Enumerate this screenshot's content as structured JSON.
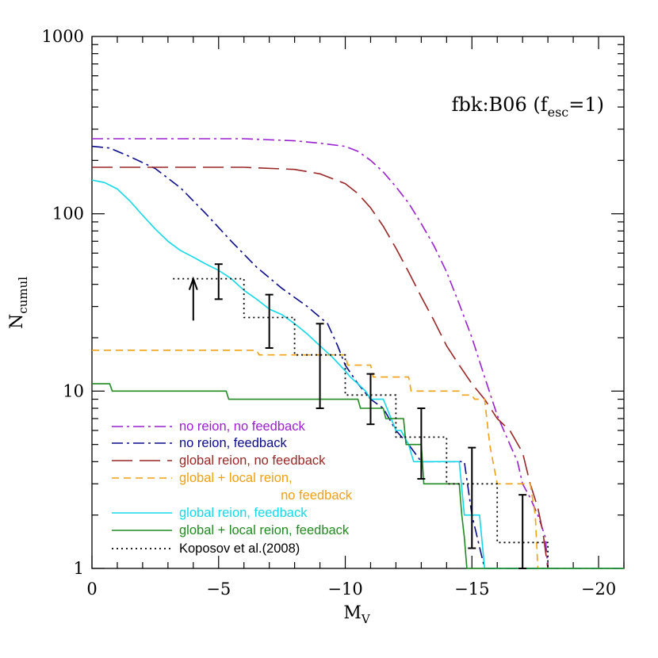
{
  "chart_data": {
    "type": "line",
    "xlabel": "M",
    "xlabel_sub": "V",
    "ylabel": "N",
    "ylabel_sub": "cumul",
    "yscale": "log",
    "xlim": [
      0,
      -21
    ],
    "ylim": [
      1,
      1000
    ],
    "x_ticks": [
      0,
      -5,
      -10,
      -15,
      -20
    ],
    "x_tick_labels": [
      "0",
      "−5",
      "−10",
      "−15",
      "−20"
    ],
    "y_ticks": [
      1,
      10,
      100,
      1000
    ],
    "y_tick_labels": [
      "1",
      "10",
      "100",
      "1000"
    ],
    "annotation": {
      "prefix": "fbk:B06  (f",
      "sub": "esc",
      "suffix": "=1)"
    },
    "legend_placement": "lower-left",
    "series": [
      {
        "name": "no reion, no feedback",
        "color": "#9a1fd0",
        "dash": "dashdot",
        "x": [
          0,
          -2,
          -4,
          -6,
          -8,
          -9,
          -10,
          -10.5,
          -11,
          -11.5,
          -12,
          -12.5,
          -13,
          -13.5,
          -14,
          -14.5,
          -15,
          -15.5,
          -16,
          -16.5,
          -16.8,
          -17,
          -17.3,
          -17.6,
          -17.9,
          -18
        ],
        "y": [
          265,
          265,
          265,
          265,
          258,
          250,
          240,
          225,
          200,
          172,
          142,
          115,
          88,
          66,
          47,
          31,
          20,
          12,
          7.3,
          5,
          4,
          3,
          2.5,
          2,
          1.5,
          1
        ]
      },
      {
        "name": "no reion, feedback",
        "color": "#0a0a8a",
        "dash": "dashdot",
        "x": [
          0,
          -0.7,
          -1.5,
          -2.5,
          -3.5,
          -4.5,
          -5.5,
          -6.5,
          -7.5,
          -8.5,
          -9.3,
          -9.7,
          -10,
          -10.5,
          -11,
          -11.5,
          -12,
          -12.5,
          -13,
          -13.5,
          -14,
          -14.7,
          -15,
          -15.5,
          -16,
          -16.5,
          -17,
          -17.5,
          -17.7,
          -18,
          -21
        ],
        "y": [
          240,
          235,
          210,
          180,
          140,
          100,
          70,
          50,
          38,
          30,
          24,
          18,
          14,
          11,
          9,
          8,
          6,
          5,
          4,
          4,
          4,
          4,
          2,
          1,
          1,
          1,
          1,
          1,
          1,
          1,
          1
        ]
      },
      {
        "name": "global reion, no feedback",
        "color": "#9a2525",
        "dash": "longdash",
        "x": [
          0,
          -2,
          -4,
          -6,
          -8,
          -9,
          -10,
          -10.5,
          -11,
          -11.5,
          -12,
          -12.5,
          -13,
          -13.5,
          -14,
          -14.5,
          -15,
          -15.5,
          -16,
          -16.5,
          -17,
          -17.3,
          -17.6,
          -17.8,
          -18
        ],
        "y": [
          183,
          183,
          183,
          183,
          178,
          168,
          148,
          130,
          108,
          85,
          64,
          47,
          34,
          25,
          18,
          14,
          11,
          9,
          7,
          6,
          4.5,
          3,
          2.2,
          1.6,
          1
        ]
      },
      {
        "name": "global + local reion, no feedback",
        "color": "#f0a010",
        "dash": "dash",
        "x": [
          0,
          -6.5,
          -6.6,
          -10,
          -10.1,
          -11,
          -11.1,
          -12.5,
          -12.6,
          -14.5,
          -14.6,
          -15,
          -15.1,
          -15.5,
          -15.7,
          -16,
          -16.5,
          -17,
          -17.3,
          -17.5,
          -17.6,
          -17.8,
          -18,
          -21
        ],
        "y": [
          17,
          17,
          16,
          16,
          14,
          14,
          12,
          12,
          10,
          10,
          9.5,
          9.5,
          9,
          9,
          5,
          3,
          3,
          3,
          3,
          2,
          1,
          1,
          1,
          1
        ]
      },
      {
        "name": "global reion, feedback",
        "color": "#12d8e8",
        "dash": "solid",
        "x": [
          0,
          -0.5,
          -1,
          -1.5,
          -2,
          -2.5,
          -3,
          -3.5,
          -4,
          -4.5,
          -5,
          -5.5,
          -6,
          -6.5,
          -7,
          -7.5,
          -8,
          -8.5,
          -9,
          -9.5,
          -10,
          -10.2,
          -10.5,
          -10.8,
          -11,
          -11.3,
          -11.5,
          -12,
          -12.2,
          -12.5,
          -12.7,
          -13,
          -13.5,
          -14,
          -14.5,
          -14.7,
          -15,
          -15.3,
          -15.5,
          -15.7,
          -16,
          -17,
          -18,
          -19,
          -20,
          -21
        ],
        "y": [
          155,
          150,
          138,
          118,
          98,
          82,
          70,
          62,
          57,
          52,
          48,
          43,
          37,
          33,
          29,
          27,
          24,
          21,
          18,
          15.5,
          13,
          12,
          11,
          10,
          9,
          9,
          9,
          6,
          6,
          5,
          4,
          4,
          4,
          4,
          4,
          2,
          2,
          2,
          1,
          1,
          1,
          1,
          1,
          1,
          1,
          1
        ]
      },
      {
        "name": "global + local reion, feedback",
        "color": "#1f8a1f",
        "dash": "solid",
        "x": [
          0,
          -0.7,
          -0.8,
          -5.3,
          -5.4,
          -10.5,
          -10.6,
          -11.5,
          -11.6,
          -12.3,
          -12.4,
          -13,
          -13.1,
          -14.5,
          -14.6,
          -14.7,
          -14.8,
          -15,
          -21
        ],
        "y": [
          11,
          11,
          10,
          10,
          9,
          9,
          8,
          8,
          7,
          7,
          5,
          5,
          3,
          3,
          2,
          1.5,
          1,
          1,
          1
        ]
      },
      {
        "name": "Koposov et al.(2008)",
        "color": "#000000",
        "dash": "dotted",
        "x": [
          -3.2,
          -6,
          -6,
          -8,
          -8,
          -10,
          -10,
          -12,
          -12,
          -14,
          -14,
          -16,
          -16,
          -18,
          -18
        ],
        "y": [
          43,
          43,
          26,
          26,
          16,
          16,
          9.5,
          9.5,
          5.5,
          5.5,
          3,
          3,
          1.4,
          1.4,
          1
        ]
      }
    ],
    "error_bars": [
      {
        "x": -5,
        "y": 43,
        "lo": 33,
        "hi": 52
      },
      {
        "x": -7,
        "y": 26,
        "lo": 17.5,
        "hi": 35
      },
      {
        "x": -9,
        "y": 16,
        "lo": 8,
        "hi": 24
      },
      {
        "x": -11,
        "y": 9.5,
        "lo": 6.5,
        "hi": 12.5
      },
      {
        "x": -13,
        "y": 5.5,
        "lo": 3.2,
        "hi": 8
      },
      {
        "x": -15,
        "y": 3,
        "lo": 1.3,
        "hi": 4.8
      },
      {
        "x": -17,
        "y": 1.4,
        "lo": 1,
        "hi": 2.6
      }
    ],
    "lower_limit_arrow": {
      "x": -4,
      "y_from": 25,
      "y_to": 43
    }
  }
}
